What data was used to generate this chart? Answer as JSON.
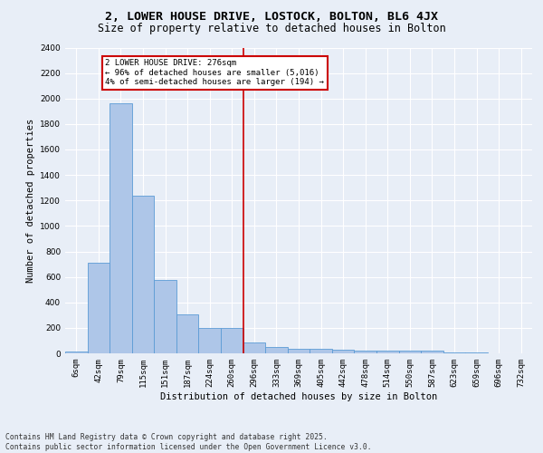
{
  "title": "2, LOWER HOUSE DRIVE, LOSTOCK, BOLTON, BL6 4JX",
  "subtitle": "Size of property relative to detached houses in Bolton",
  "xlabel": "Distribution of detached houses by size in Bolton",
  "ylabel": "Number of detached properties",
  "categories": [
    "6sqm",
    "42sqm",
    "79sqm",
    "115sqm",
    "151sqm",
    "187sqm",
    "224sqm",
    "260sqm",
    "296sqm",
    "333sqm",
    "369sqm",
    "405sqm",
    "442sqm",
    "478sqm",
    "514sqm",
    "550sqm",
    "587sqm",
    "623sqm",
    "659sqm",
    "696sqm",
    "732sqm"
  ],
  "values": [
    15,
    710,
    1960,
    1235,
    575,
    305,
    200,
    200,
    85,
    48,
    38,
    35,
    30,
    20,
    20,
    20,
    18,
    5,
    5,
    2,
    2
  ],
  "bar_color": "#aec6e8",
  "bar_edge_color": "#5b9bd5",
  "background_color": "#e8eef7",
  "grid_color": "#ffffff",
  "vline_x_idx": 7.5,
  "vline_color": "#cc0000",
  "annotation_text": "2 LOWER HOUSE DRIVE: 276sqm\n← 96% of detached houses are smaller (5,016)\n4% of semi-detached houses are larger (194) →",
  "annotation_box_color": "#cc0000",
  "footer_text": "Contains HM Land Registry data © Crown copyright and database right 2025.\nContains public sector information licensed under the Open Government Licence v3.0.",
  "ylim": [
    0,
    2400
  ],
  "yticks": [
    0,
    200,
    400,
    600,
    800,
    1000,
    1200,
    1400,
    1600,
    1800,
    2000,
    2200,
    2400
  ],
  "title_fontsize": 9.5,
  "subtitle_fontsize": 8.5,
  "label_fontsize": 7.5,
  "tick_fontsize": 6.5,
  "footer_fontsize": 5.8,
  "annot_fontsize": 6.5
}
